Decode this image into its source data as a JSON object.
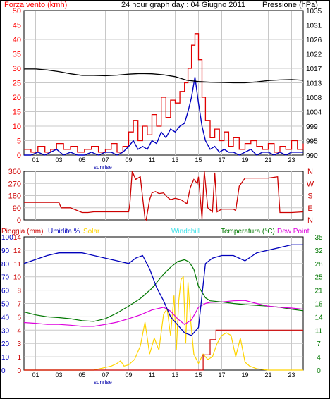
{
  "colors": {
    "wind": "#ff0000",
    "gust": "#e00000",
    "avg_wind": "#0000c0",
    "pressure": "#000000",
    "direction": "#cc0000",
    "rain": "#cc0000",
    "humidity": "#0000bb",
    "solar": "#ffd400",
    "windchill": "#40e0e8",
    "temperature": "#007700",
    "dewpoint": "#dd00dd",
    "grid": "#c8c8c8"
  },
  "header": {
    "wind_label": "Forza vento (kmh)",
    "title": "24 hour graph day : 04 Giugno 2011",
    "pressure_label": "Pressione (hPa)"
  },
  "legend": {
    "rain": "Pioggia (mm)",
    "humidity": "Umidita %",
    "solar": "Solar",
    "windchill": "Windchill",
    "temperature": "Temperatura (°C)",
    "dewpoint": "Dew Point"
  },
  "sunrise_label": "sunrise",
  "chart_data": [
    {
      "type": "line",
      "name": "wind",
      "x_ticks": [
        "01",
        "03",
        "05",
        "07",
        "09",
        "11",
        "13",
        "15",
        "17",
        "19",
        "21",
        "23"
      ],
      "y_left_ticks": [
        "0",
        "5",
        "10",
        "15",
        "20",
        "25",
        "30",
        "35",
        "40",
        "45",
        "50"
      ],
      "y_right_ticks": [
        "990",
        "995",
        "999",
        "1004",
        "1008",
        "1013",
        "1017",
        "1022",
        "1026",
        "1031",
        "1035"
      ],
      "ylim_left": [
        0,
        50
      ],
      "ylim_right": [
        990,
        1035
      ],
      "xlim": [
        0,
        24
      ],
      "series": [
        {
          "name": "Forza vento (kmh)",
          "role": "gust",
          "x": [
            0,
            0.6,
            1.2,
            1.8,
            2.3,
            2.8,
            3.4,
            4.0,
            4.6,
            5.2,
            5.8,
            6.4,
            7.0,
            7.5,
            8.0,
            8.5,
            9.0,
            9.4,
            9.8,
            10.2,
            10.6,
            11.0,
            11.4,
            11.8,
            12.2,
            12.6,
            13.0,
            13.4,
            13.8,
            14.1,
            14.4,
            14.7,
            15.0,
            15.3,
            15.6,
            16.0,
            16.4,
            16.8,
            17.2,
            17.6,
            18.0,
            18.5,
            19.0,
            19.5,
            20.0,
            20.5,
            21.0,
            21.5,
            22.0,
            22.5,
            23.0,
            23.5,
            24.0
          ],
          "y": [
            2,
            1,
            3,
            1,
            2,
            4,
            2,
            3,
            1,
            2,
            3,
            1,
            2,
            4,
            1,
            3,
            8,
            12,
            5,
            10,
            7,
            14,
            10,
            20,
            13,
            19,
            18,
            22,
            25,
            30,
            38,
            42,
            33,
            20,
            12,
            6,
            9,
            5,
            8,
            3,
            6,
            2,
            4,
            5,
            3,
            2,
            4,
            1,
            3,
            2,
            5,
            2,
            4
          ]
        },
        {
          "name": "avg",
          "role": "average",
          "x": [
            0,
            0.6,
            1.2,
            1.8,
            2.3,
            2.8,
            3.4,
            4.0,
            4.6,
            5.2,
            5.8,
            6.4,
            7.0,
            7.5,
            8.0,
            8.5,
            9.0,
            9.4,
            9.8,
            10.2,
            10.6,
            11.0,
            11.4,
            11.8,
            12.2,
            12.6,
            13.0,
            13.4,
            13.8,
            14.1,
            14.4,
            14.7,
            15.0,
            15.3,
            15.6,
            16.0,
            16.4,
            16.8,
            17.2,
            17.6,
            18.0,
            18.5,
            19.0,
            19.5,
            20.0,
            20.5,
            21.0,
            21.5,
            22.0,
            22.5,
            23.0,
            23.5,
            24.0
          ],
          "y": [
            0,
            0,
            1,
            0,
            1,
            2,
            0,
            1,
            0,
            0,
            1,
            0,
            1,
            1,
            0,
            1,
            3,
            5,
            2,
            3,
            2,
            5,
            4,
            8,
            6,
            9,
            8,
            10,
            11,
            15,
            20,
            27,
            18,
            10,
            5,
            2,
            3,
            1,
            2,
            1,
            1,
            0,
            1,
            2,
            0,
            1,
            1,
            0,
            1,
            0,
            1,
            1,
            1
          ]
        },
        {
          "name": "Pressione (hPa)",
          "role": "pressure",
          "x": [
            0,
            1,
            2,
            3,
            4,
            5,
            6,
            7,
            8,
            9,
            10,
            11,
            12,
            13,
            14,
            15,
            16,
            17,
            18,
            19,
            20,
            21,
            22,
            23,
            24
          ],
          "y": [
            1016.8,
            1016.8,
            1016.5,
            1016.0,
            1015.3,
            1014.8,
            1014.8,
            1014.7,
            1014.9,
            1015.2,
            1015.4,
            1015.3,
            1015.0,
            1014.4,
            1013.3,
            1012.9,
            1012.7,
            1012.6,
            1012.5,
            1012.5,
            1012.8,
            1013.2,
            1013.4,
            1013.5,
            1013.3
          ]
        }
      ]
    },
    {
      "type": "line",
      "name": "direction",
      "y_left_ticks": [
        "0",
        "90",
        "180",
        "270",
        "360"
      ],
      "y_right_ticks": [
        "N",
        "E",
        "S",
        "W",
        "N"
      ],
      "ylim": [
        0,
        360
      ],
      "xlim": [
        0,
        24
      ],
      "series": [
        {
          "name": "direction",
          "x": [
            0,
            3,
            3.2,
            4,
            5,
            5.5,
            6,
            7,
            8,
            9,
            9.1,
            9.3,
            9.6,
            10,
            10.4,
            10.5,
            10.8,
            11,
            11.3,
            11.6,
            12,
            12.3,
            12.6,
            13,
            13.5,
            14,
            14.3,
            14.6,
            14.9,
            15,
            15.3,
            15.5,
            15.8,
            16.2,
            16.4,
            16.6,
            17,
            17.5,
            18,
            18.2,
            18.5,
            19,
            20,
            21,
            21.8,
            22,
            23,
            24
          ],
          "y": [
            130,
            130,
            90,
            90,
            55,
            55,
            60,
            60,
            60,
            60,
            120,
            360,
            300,
            320,
            10,
            0,
            150,
            200,
            210,
            195,
            200,
            170,
            150,
            160,
            150,
            120,
            240,
            300,
            270,
            320,
            10,
            360,
            90,
            60,
            350,
            60,
            80,
            80,
            80,
            70,
            250,
            310,
            310,
            310,
            320,
            55,
            55,
            60
          ]
        }
      ]
    },
    {
      "type": "line",
      "name": "rain-humidity-solar-temperature",
      "x_ticks": [
        "01",
        "03",
        "05",
        "07",
        "09",
        "11",
        "13",
        "15",
        "17",
        "19",
        "21",
        "23"
      ],
      "y_left_ticks": [
        "0",
        "10",
        "20",
        "30",
        "40",
        "50",
        "60",
        "70",
        "80",
        "90",
        "100"
      ],
      "y_left2_ticks": [
        "0",
        "1",
        "3",
        "4",
        "6",
        "7",
        "8",
        "10",
        "11",
        "12",
        "14"
      ],
      "y_right_ticks": [
        "0",
        "4",
        "7",
        "11",
        "14",
        "18",
        "21",
        "25",
        "28",
        "32",
        "35"
      ],
      "ylim_left": [
        0,
        100
      ],
      "ylim_right": [
        0,
        35
      ],
      "xlim": [
        0,
        24
      ],
      "series": [
        {
          "name": "Umidita %",
          "x": [
            0,
            1,
            2,
            3,
            4,
            5,
            6,
            7,
            8,
            9,
            9.6,
            10.2,
            10.8,
            11.4,
            12,
            12.6,
            13.2,
            13.8,
            14.4,
            15,
            15.6,
            16.2,
            17,
            18,
            19,
            20,
            21,
            22,
            23,
            24
          ],
          "y": [
            80,
            83,
            86,
            88,
            88,
            88,
            86,
            84,
            82,
            80,
            84,
            86,
            76,
            62,
            52,
            40,
            34,
            28,
            26,
            32,
            80,
            84,
            86,
            86,
            82,
            88,
            90,
            92,
            94,
            94
          ]
        },
        {
          "name": "Temperatura (°C)",
          "x": [
            0,
            1,
            2,
            3,
            4,
            5,
            6,
            7,
            8,
            9,
            10,
            11,
            12,
            12.6,
            13.2,
            13.8,
            14.2,
            14.6,
            15,
            15.6,
            16,
            17,
            18,
            19,
            20,
            21,
            22,
            23,
            24
          ],
          "y": [
            15.3,
            14.5,
            14,
            13.8,
            13.5,
            13,
            12.8,
            13.5,
            15,
            16.8,
            18.8,
            21.5,
            25.2,
            27,
            28.5,
            29,
            28.4,
            26.5,
            22,
            19,
            18.2,
            17.9,
            17.5,
            17.2,
            17,
            16.8,
            16.5,
            16,
            15.6
          ]
        },
        {
          "name": "Dew Point",
          "x": [
            0,
            1,
            2,
            3,
            4,
            5,
            6,
            7,
            8,
            9,
            10,
            11,
            12,
            12.6,
            13.2,
            13.8,
            14.4,
            15,
            15.6,
            16,
            17,
            18,
            19,
            20,
            21,
            22,
            23,
            24
          ],
          "y": [
            12.5,
            12.3,
            12,
            12,
            11.8,
            11.5,
            11.5,
            12,
            12.6,
            13.5,
            14.5,
            15.8,
            16.5,
            15.5,
            13.5,
            12,
            13.2,
            16.5,
            17.5,
            17.8,
            17.9,
            18.2,
            18.3,
            17.5,
            16.8,
            16.5,
            16.3,
            16
          ]
        },
        {
          "name": "Solar",
          "x": [
            0,
            6,
            6.5,
            7,
            7.5,
            8,
            8.3,
            8.6,
            9,
            9.5,
            10,
            10.4,
            10.8,
            11.2,
            11.6,
            12,
            12.3,
            12.6,
            12.9,
            13.1,
            13.3,
            13.5,
            13.7,
            13.9,
            14.1,
            14.3,
            14.6,
            15,
            15.4,
            15.8,
            16.2,
            16.6,
            17,
            17.4,
            17.8,
            18.2,
            18.6,
            19,
            19.4,
            20,
            21,
            22,
            23,
            24
          ],
          "y": [
            0,
            0,
            1,
            2,
            3,
            5,
            7,
            3,
            4,
            8,
            18,
            36,
            12,
            24,
            15,
            42,
            46,
            26,
            56,
            15,
            52,
            68,
            70,
            20,
            66,
            40,
            12,
            5,
            12,
            8,
            10,
            20,
            26,
            28,
            26,
            10,
            24,
            6,
            3,
            1,
            0,
            0,
            0,
            0
          ]
        },
        {
          "name": "Pioggia (mm)",
          "x": [
            0,
            15.0,
            15.4,
            16,
            16.5,
            17,
            24
          ],
          "y": [
            0,
            0,
            1.6,
            3.2,
            4.2,
            4.2,
            4.2
          ]
        }
      ]
    }
  ]
}
